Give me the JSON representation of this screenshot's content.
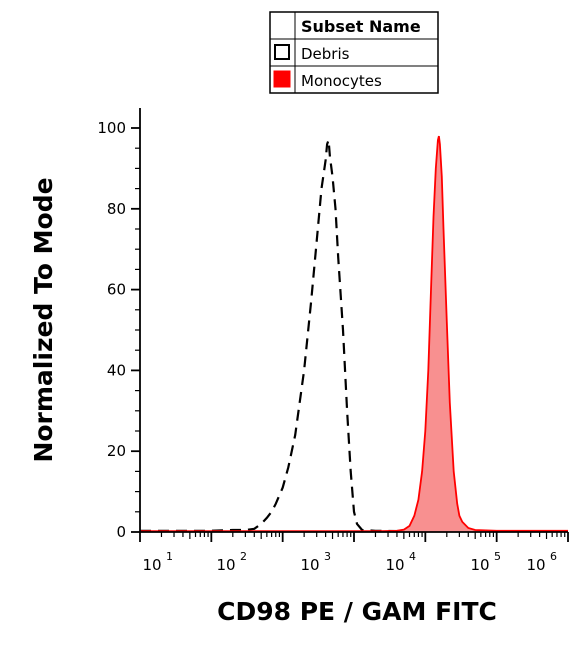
{
  "legend": {
    "header": "Subset Name",
    "entries": [
      {
        "label": "Debris",
        "color": "#ffffff",
        "stroke": "#000000",
        "style": "dashed"
      },
      {
        "label": "Monocytes",
        "color": "#ff0000",
        "stroke": "#ff0000",
        "style": "filled"
      }
    ]
  },
  "chart_data": {
    "type": "area",
    "xlabel": "CD98 PE  / GAM FITC",
    "ylabel": "Normalized To Mode",
    "ylim": [
      0,
      100
    ],
    "yticks": [
      0,
      20,
      40,
      60,
      80,
      100
    ],
    "xscale": "log",
    "xlim": [
      1,
      1000000
    ],
    "xtick_labels": [
      {
        "value": 10,
        "base": "10",
        "exp": "1"
      },
      {
        "value": 100,
        "base": "10",
        "exp": "2"
      },
      {
        "value": 1000,
        "base": "10",
        "exp": "3"
      },
      {
        "value": 10000,
        "base": "10",
        "exp": "4"
      },
      {
        "value": 100000,
        "base": "10",
        "exp": "5"
      },
      {
        "value": 1000000,
        "base": "10",
        "exp": "6"
      }
    ],
    "series": [
      {
        "name": "Debris",
        "style": "dashed",
        "color": "#000000",
        "points": [
          [
            1,
            0.3
          ],
          [
            10,
            0.3
          ],
          [
            20,
            0.5
          ],
          [
            30,
            0.5
          ],
          [
            40,
            0.8
          ],
          [
            50,
            2
          ],
          [
            60,
            3.5
          ],
          [
            70,
            5
          ],
          [
            80,
            7
          ],
          [
            100,
            11
          ],
          [
            120,
            16
          ],
          [
            150,
            24
          ],
          [
            200,
            40
          ],
          [
            250,
            57
          ],
          [
            300,
            72
          ],
          [
            350,
            85
          ],
          [
            400,
            92
          ],
          [
            420,
            96
          ],
          [
            440,
            97
          ],
          [
            460,
            93
          ],
          [
            500,
            88
          ],
          [
            550,
            80
          ],
          [
            600,
            68
          ],
          [
            700,
            50
          ],
          [
            800,
            30
          ],
          [
            900,
            15
          ],
          [
            1000,
            5
          ],
          [
            1100,
            2
          ],
          [
            1300,
            0.5
          ],
          [
            2000,
            0.3
          ],
          [
            5000,
            0.2
          ],
          [
            10000,
            0.2
          ],
          [
            1000000,
            0.2
          ]
        ]
      },
      {
        "name": "Monocytes",
        "style": "filled",
        "color": "#ff0000",
        "fill": "#f89090",
        "points": [
          [
            1,
            0.2
          ],
          [
            1000,
            0.2
          ],
          [
            2000,
            0.2
          ],
          [
            4000,
            0.3
          ],
          [
            5000,
            0.6
          ],
          [
            6000,
            1.5
          ],
          [
            7000,
            4
          ],
          [
            8000,
            8
          ],
          [
            9000,
            15
          ],
          [
            10000,
            25
          ],
          [
            11000,
            40
          ],
          [
            12000,
            60
          ],
          [
            13000,
            78
          ],
          [
            14000,
            90
          ],
          [
            15000,
            97
          ],
          [
            15500,
            98
          ],
          [
            16000,
            96
          ],
          [
            17000,
            88
          ],
          [
            18000,
            75
          ],
          [
            20000,
            52
          ],
          [
            22000,
            32
          ],
          [
            25000,
            15
          ],
          [
            28000,
            7
          ],
          [
            30000,
            4
          ],
          [
            33000,
            2.5
          ],
          [
            40000,
            1
          ],
          [
            50000,
            0.5
          ],
          [
            100000,
            0.3
          ],
          [
            1000000,
            0.3
          ]
        ]
      }
    ]
  }
}
